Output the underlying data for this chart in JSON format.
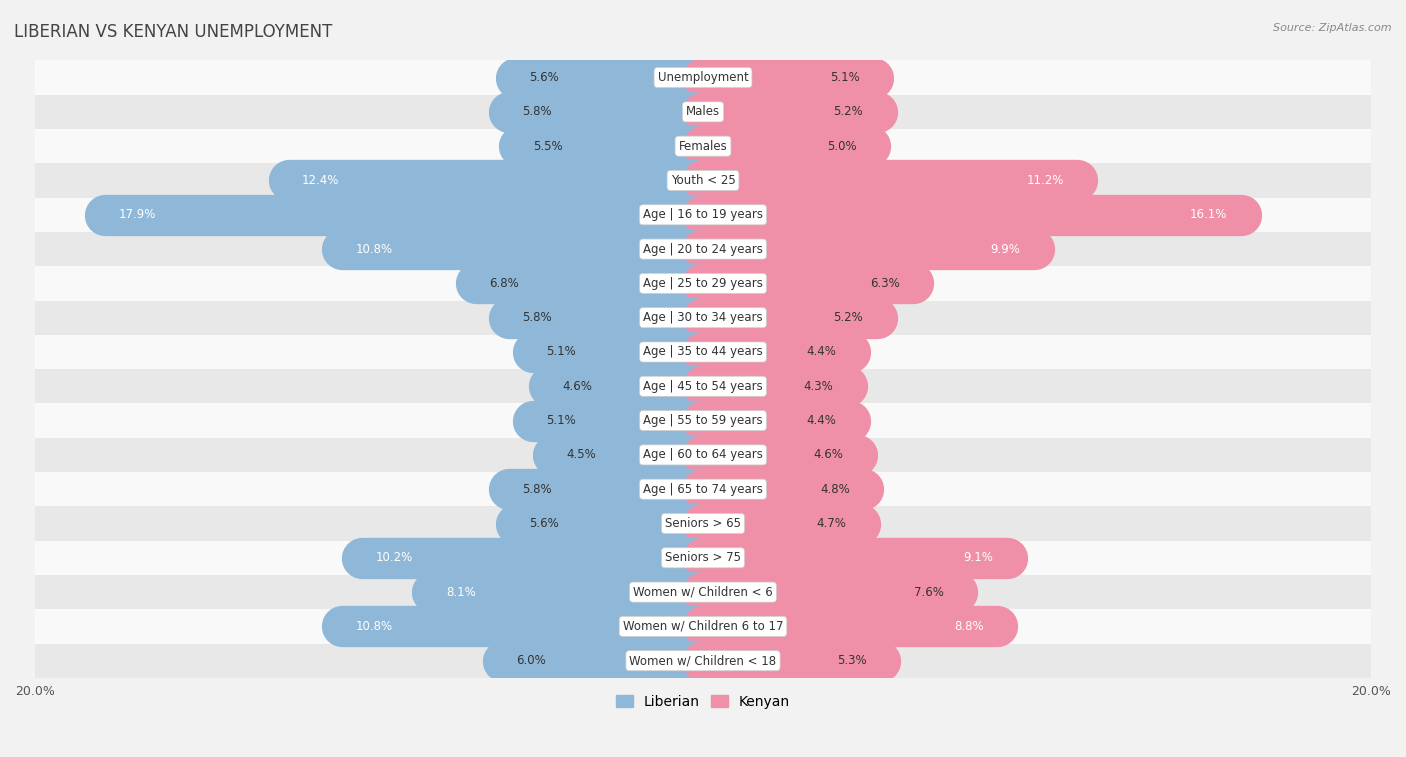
{
  "title": "LIBERIAN VS KENYAN UNEMPLOYMENT",
  "source": "Source: ZipAtlas.com",
  "categories": [
    "Unemployment",
    "Males",
    "Females",
    "Youth < 25",
    "Age | 16 to 19 years",
    "Age | 20 to 24 years",
    "Age | 25 to 29 years",
    "Age | 30 to 34 years",
    "Age | 35 to 44 years",
    "Age | 45 to 54 years",
    "Age | 55 to 59 years",
    "Age | 60 to 64 years",
    "Age | 65 to 74 years",
    "Seniors > 65",
    "Seniors > 75",
    "Women w/ Children < 6",
    "Women w/ Children 6 to 17",
    "Women w/ Children < 18"
  ],
  "liberian": [
    5.6,
    5.8,
    5.5,
    12.4,
    17.9,
    10.8,
    6.8,
    5.8,
    5.1,
    4.6,
    5.1,
    4.5,
    5.8,
    5.6,
    10.2,
    8.1,
    10.8,
    6.0
  ],
  "kenyan": [
    5.1,
    5.2,
    5.0,
    11.2,
    16.1,
    9.9,
    6.3,
    5.2,
    4.4,
    4.3,
    4.4,
    4.6,
    4.8,
    4.7,
    9.1,
    7.6,
    8.8,
    5.3
  ],
  "liberian_color": "#8fb8d8",
  "kenyan_color": "#f090a8",
  "background_color": "#f2f2f2",
  "row_bg_light": "#f9f9f9",
  "row_bg_dark": "#e8e8e8",
  "max_val": 20.0,
  "bar_height": 0.62,
  "title_fontsize": 12,
  "label_fontsize": 8.5,
  "tick_fontsize": 9,
  "legend_fontsize": 10
}
